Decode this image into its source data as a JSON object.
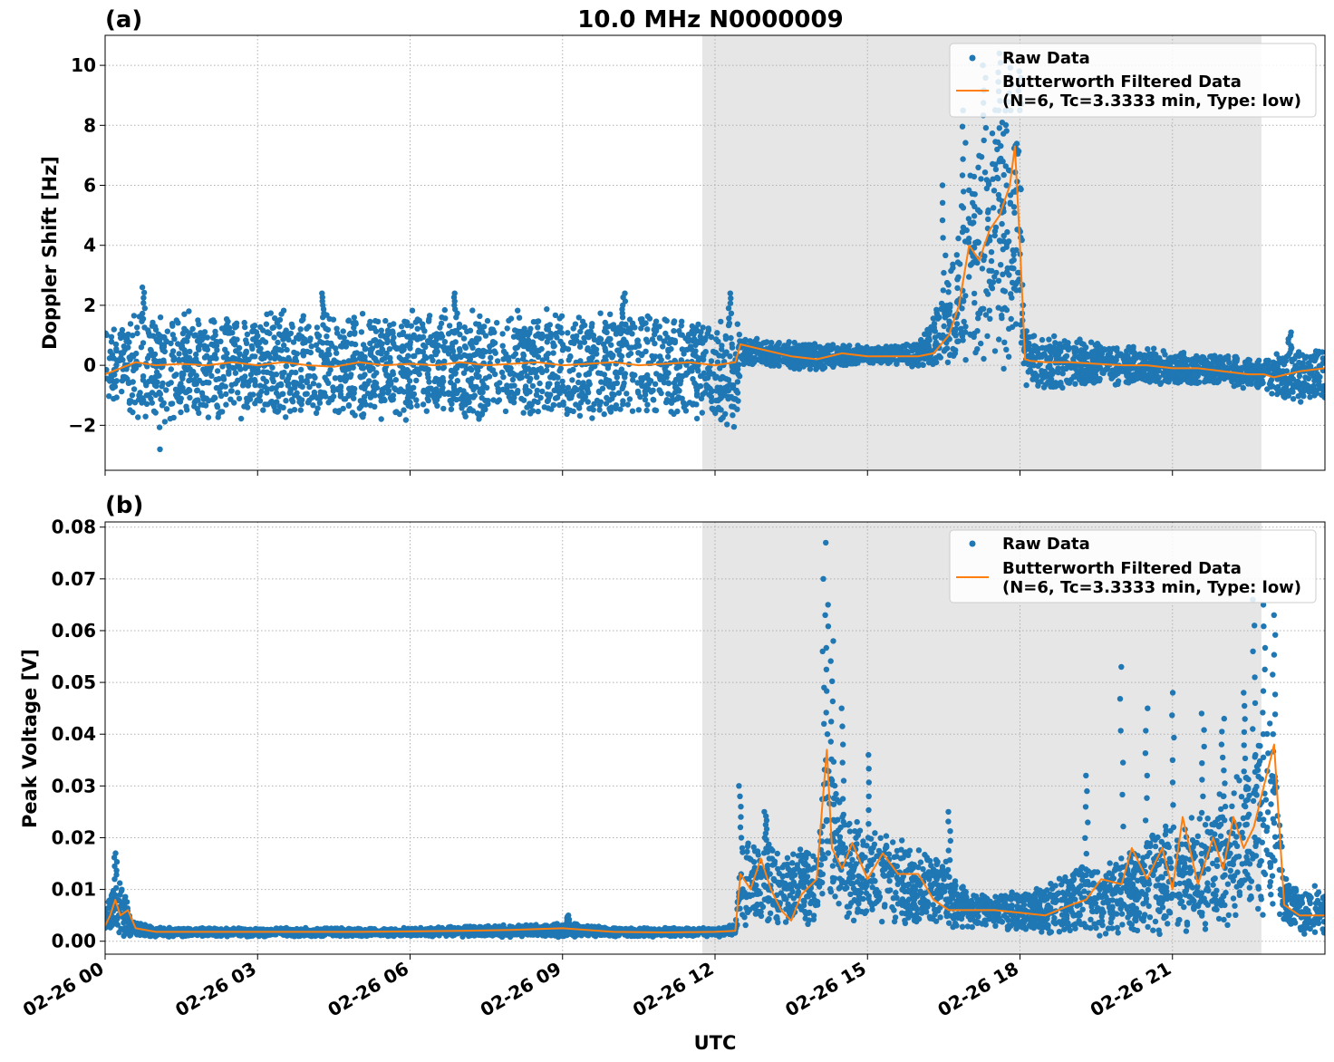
{
  "figure": {
    "title": "10.0 MHz N0000009",
    "xlabel": "UTC",
    "x_tick_labels": [
      "02-26 00",
      "02-26 03",
      "02-26 06",
      "02-26 09",
      "02-26 12",
      "02-26 15",
      "02-26 18",
      "02-26 21"
    ]
  },
  "legend": {
    "raw_label": "Raw Data",
    "filtered_label_line1": "Butterworth Filtered Data",
    "filtered_label_line2": "(N=6, Tc=3.3333 min, Type: low)"
  },
  "colors": {
    "raw": "#1f77b4",
    "filtered": "#ff7f0e",
    "shade": "#e6e6e6"
  },
  "chart_data": [
    {
      "type": "scatter",
      "panel_label": "(a)",
      "ylabel": "Doppler Shift [Hz]",
      "x_unit": "UTC hours since 02-26 00:00",
      "xlim": [
        0,
        24
      ],
      "ylim": [
        -3.5,
        11.0
      ],
      "yticks": [
        -2,
        0,
        2,
        4,
        6,
        8,
        10
      ],
      "ytick_labels": [
        "−2",
        "0",
        "2",
        "4",
        "6",
        "8",
        "10"
      ],
      "grid": true,
      "legend_position": "top-right",
      "shaded_interval": [
        11.75,
        22.75
      ],
      "series": [
        {
          "name": "Raw Data",
          "kind": "scatter-band",
          "x": [
            0.0,
            0.5,
            1.0,
            2.0,
            3.0,
            4.0,
            5.0,
            6.0,
            7.0,
            8.0,
            9.0,
            10.0,
            11.0,
            12.0,
            12.45,
            12.5,
            13.0,
            14.0,
            15.0,
            16.0,
            16.5,
            16.8,
            17.0,
            17.5,
            18.0,
            18.1,
            18.5,
            19.0,
            20.0,
            21.0,
            22.0,
            22.5,
            22.8,
            23.0,
            23.5,
            24.0
          ],
          "upper": [
            1.0,
            1.5,
            1.6,
            1.6,
            1.6,
            1.6,
            1.6,
            1.6,
            1.6,
            1.6,
            1.6,
            1.6,
            1.6,
            1.4,
            1.4,
            0.9,
            0.8,
            0.7,
            0.6,
            0.7,
            2.5,
            4.5,
            6.0,
            8.5,
            8.5,
            1.0,
            0.9,
            0.8,
            0.6,
            0.4,
            0.3,
            0.2,
            0.2,
            0.3,
            0.5,
            0.6
          ],
          "lower": [
            -1.0,
            -1.6,
            -1.6,
            -1.6,
            -1.6,
            -1.6,
            -1.6,
            -1.6,
            -1.6,
            -1.6,
            -1.6,
            -1.6,
            -1.6,
            -1.8,
            -1.8,
            0.1,
            0.0,
            -0.1,
            0.1,
            0.0,
            0.1,
            0.2,
            0.3,
            0.3,
            0.3,
            -0.6,
            -0.7,
            -0.6,
            -0.6,
            -0.6,
            -0.6,
            -0.7,
            -0.8,
            -1.0,
            -1.1,
            -1.2
          ],
          "peaks_x": [
            0.75,
            1.1,
            4.3,
            6.9,
            10.2,
            12.3,
            16.5,
            16.9,
            17.3,
            17.6,
            17.8,
            18.0,
            23.3
          ],
          "peaks_y": [
            2.6,
            -2.8,
            2.4,
            2.4,
            2.4,
            2.4,
            6.0,
            8.5,
            10.0,
            10.4,
            10.2,
            9.8,
            1.1
          ]
        },
        {
          "name": "Butterworth Filtered Data",
          "kind": "line",
          "x": [
            0.0,
            0.3,
            0.6,
            1.0,
            1.5,
            2.0,
            2.5,
            3.0,
            3.5,
            4.0,
            4.5,
            5.0,
            5.5,
            6.0,
            6.5,
            7.0,
            7.5,
            8.0,
            8.5,
            9.0,
            9.5,
            10.0,
            10.5,
            11.0,
            11.5,
            12.0,
            12.4,
            12.5,
            13.0,
            13.5,
            14.0,
            14.5,
            15.0,
            15.5,
            16.0,
            16.3,
            16.6,
            16.8,
            17.0,
            17.2,
            17.4,
            17.6,
            17.8,
            17.9,
            18.0,
            18.1,
            18.2,
            18.5,
            19.0,
            19.5,
            20.0,
            20.5,
            21.0,
            21.5,
            22.0,
            22.5,
            22.8,
            23.0,
            23.5,
            24.0
          ],
          "y": [
            -0.3,
            -0.1,
            0.1,
            0.0,
            0.05,
            0.0,
            0.1,
            0.0,
            0.1,
            0.0,
            -0.05,
            0.1,
            0.0,
            0.05,
            0.0,
            0.1,
            0.0,
            0.05,
            0.1,
            0.0,
            0.05,
            0.1,
            0.0,
            0.05,
            0.1,
            0.0,
            0.1,
            0.7,
            0.5,
            0.3,
            0.2,
            0.4,
            0.3,
            0.3,
            0.3,
            0.4,
            1.0,
            2.0,
            4.0,
            3.5,
            4.5,
            5.0,
            6.0,
            7.3,
            4.0,
            0.2,
            0.15,
            0.1,
            0.1,
            0.05,
            0.0,
            0.0,
            -0.1,
            -0.1,
            -0.2,
            -0.3,
            -0.3,
            -0.4,
            -0.2,
            -0.1
          ]
        }
      ]
    },
    {
      "type": "scatter",
      "panel_label": "(b)",
      "ylabel": "Peak Voltage [V]",
      "x_unit": "UTC hours since 02-26 00:00",
      "xlim": [
        0,
        24
      ],
      "ylim": [
        -0.0025,
        0.081
      ],
      "yticks": [
        0.0,
        0.01,
        0.02,
        0.03,
        0.04,
        0.05,
        0.06,
        0.07,
        0.08
      ],
      "ytick_labels": [
        "0.00",
        "0.01",
        "0.02",
        "0.03",
        "0.04",
        "0.05",
        "0.06",
        "0.07",
        "0.08"
      ],
      "grid": true,
      "legend_position": "top-right",
      "shaded_interval": [
        11.75,
        22.75
      ],
      "series": [
        {
          "name": "Raw Data",
          "kind": "scatter-band",
          "x": [
            0.0,
            0.2,
            0.4,
            0.5,
            1.0,
            3.0,
            6.0,
            8.0,
            9.0,
            10.0,
            12.0,
            12.4,
            12.5,
            13.0,
            13.5,
            14.0,
            14.2,
            14.5,
            15.0,
            16.0,
            16.5,
            17.0,
            17.5,
            18.0,
            18.5,
            19.0,
            20.0,
            21.0,
            21.5,
            22.0,
            22.5,
            22.8,
            23.0,
            23.2,
            23.5,
            24.0
          ],
          "upper": [
            0.006,
            0.012,
            0.009,
            0.004,
            0.0025,
            0.0025,
            0.0025,
            0.003,
            0.0035,
            0.0025,
            0.0025,
            0.003,
            0.018,
            0.02,
            0.016,
            0.02,
            0.04,
            0.024,
            0.02,
            0.018,
            0.015,
            0.009,
            0.009,
            0.009,
            0.011,
            0.013,
            0.016,
            0.022,
            0.024,
            0.028,
            0.034,
            0.04,
            0.04,
            0.012,
            0.01,
            0.01
          ],
          "lower": [
            0.002,
            0.002,
            0.0015,
            0.001,
            0.001,
            0.001,
            0.001,
            0.001,
            0.001,
            0.001,
            0.001,
            0.001,
            0.004,
            0.004,
            0.004,
            0.004,
            0.008,
            0.005,
            0.004,
            0.004,
            0.003,
            0.003,
            0.003,
            0.002,
            0.002,
            0.002,
            0.002,
            0.003,
            0.003,
            0.004,
            0.005,
            0.007,
            0.006,
            0.002,
            0.002,
            0.002
          ],
          "peaks_x": [
            0.2,
            9.1,
            12.5,
            13.0,
            14.15,
            14.2,
            14.3,
            14.5,
            15.0,
            16.6,
            19.3,
            20.0,
            20.5,
            21.0,
            21.6,
            22.0,
            22.4,
            22.6,
            22.8,
            23.0
          ],
          "peaks_y": [
            0.017,
            0.005,
            0.03,
            0.025,
            0.077,
            0.065,
            0.058,
            0.045,
            0.036,
            0.025,
            0.032,
            0.053,
            0.045,
            0.048,
            0.044,
            0.043,
            0.048,
            0.066,
            0.065,
            0.063
          ]
        },
        {
          "name": "Butterworth Filtered Data",
          "kind": "line",
          "x": [
            0.0,
            0.1,
            0.2,
            0.3,
            0.45,
            0.6,
            1.0,
            2.0,
            3.0,
            4.0,
            5.0,
            6.0,
            7.0,
            8.0,
            9.0,
            10.0,
            11.0,
            12.0,
            12.4,
            12.5,
            12.7,
            12.9,
            13.1,
            13.3,
            13.5,
            13.7,
            14.0,
            14.1,
            14.2,
            14.3,
            14.5,
            14.7,
            15.0,
            15.3,
            15.6,
            16.0,
            16.3,
            16.6,
            17.0,
            17.5,
            18.0,
            18.5,
            19.0,
            19.3,
            19.6,
            20.0,
            20.2,
            20.5,
            20.8,
            21.0,
            21.2,
            21.5,
            21.8,
            22.0,
            22.2,
            22.4,
            22.6,
            22.8,
            23.0,
            23.2,
            23.5,
            24.0
          ],
          "y": [
            0.003,
            0.005,
            0.008,
            0.005,
            0.006,
            0.0025,
            0.0018,
            0.0018,
            0.0018,
            0.0018,
            0.0018,
            0.0019,
            0.002,
            0.0022,
            0.0025,
            0.0018,
            0.0017,
            0.0018,
            0.002,
            0.013,
            0.01,
            0.016,
            0.01,
            0.006,
            0.004,
            0.009,
            0.012,
            0.025,
            0.037,
            0.018,
            0.014,
            0.019,
            0.012,
            0.017,
            0.013,
            0.013,
            0.008,
            0.006,
            0.006,
            0.006,
            0.0055,
            0.005,
            0.007,
            0.008,
            0.012,
            0.011,
            0.018,
            0.012,
            0.018,
            0.01,
            0.024,
            0.011,
            0.02,
            0.014,
            0.024,
            0.018,
            0.022,
            0.03,
            0.038,
            0.007,
            0.005,
            0.005
          ]
        }
      ]
    }
  ]
}
